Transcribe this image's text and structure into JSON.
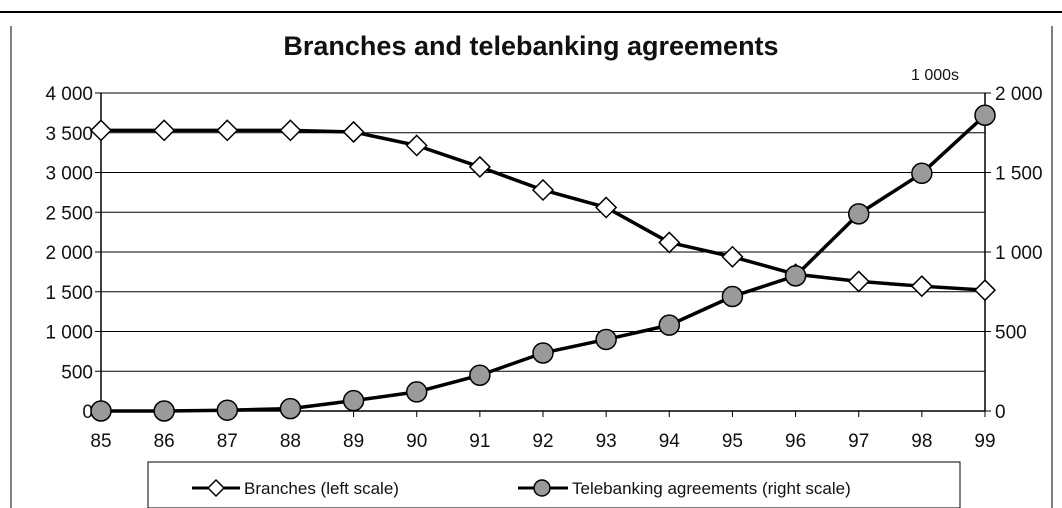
{
  "chart_data": {
    "type": "line",
    "title": "Branches and telebanking agreements",
    "right_axis_unit": "1 000s",
    "categories": [
      "85",
      "86",
      "87",
      "88",
      "89",
      "90",
      "91",
      "92",
      "93",
      "94",
      "95",
      "96",
      "97",
      "98",
      "99"
    ],
    "left_axis": {
      "ylim": [
        0,
        4000
      ],
      "ticks": [
        "0",
        "500",
        "1 000",
        "1 500",
        "2 000",
        "2 500",
        "3 000",
        "3 500",
        "4 000"
      ]
    },
    "right_axis": {
      "ylim": [
        0,
        2000
      ],
      "ticks": [
        "0",
        "500",
        "1 000",
        "1 500",
        "2 000"
      ]
    },
    "series": [
      {
        "name": "Branches (left scale)",
        "axis": "left",
        "marker": "diamond",
        "color": "#ffffff",
        "values": [
          3530,
          3530,
          3530,
          3530,
          3510,
          3340,
          3070,
          2780,
          2560,
          2120,
          1940,
          1720,
          1630,
          1570,
          1520
        ]
      },
      {
        "name": "Telebanking agreements (right scale)",
        "axis": "right",
        "marker": "circle",
        "color": "#9a9a9a",
        "values": [
          0,
          0,
          5,
          15,
          65,
          120,
          225,
          365,
          450,
          540,
          720,
          850,
          1240,
          1495,
          1860
        ]
      }
    ],
    "grid": true,
    "legend": "bottom"
  }
}
